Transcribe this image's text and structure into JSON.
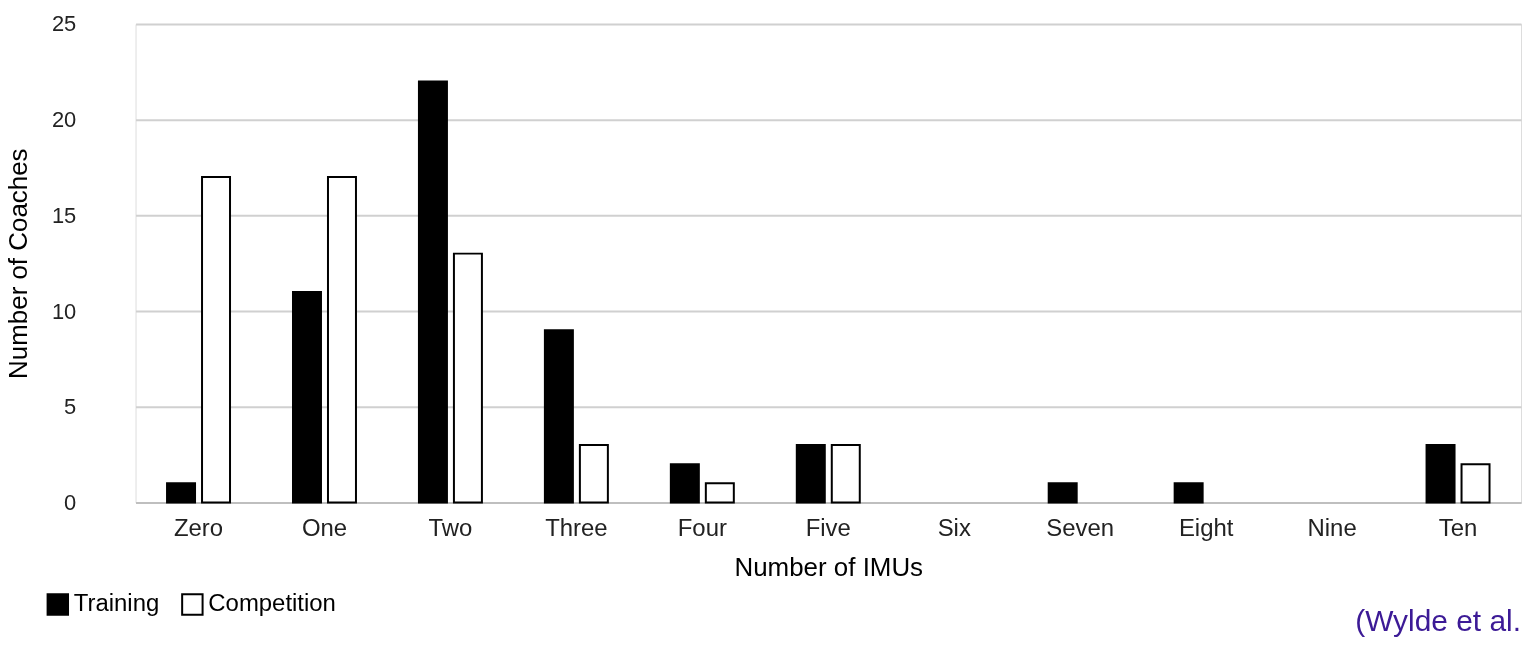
{
  "chart_data": {
    "type": "bar",
    "xlabel": "Number of IMUs",
    "ylabel": "Number of Coaches",
    "categories": [
      "Zero",
      "One",
      "Two",
      "Three",
      "Four",
      "Five",
      "Six",
      "Seven",
      "Eight",
      "Nine",
      "Ten"
    ],
    "series": [
      {
        "name": "Training",
        "color": "#000000",
        "values": [
          1,
          11,
          22,
          9,
          2,
          3,
          0,
          1,
          1,
          0,
          3
        ]
      },
      {
        "name": "Competition",
        "color": "#ffffff",
        "values": [
          17,
          17,
          13,
          3,
          1,
          3,
          0,
          0,
          0,
          0,
          2
        ]
      }
    ],
    "ylim": [
      0,
      25
    ],
    "yticks": [
      0,
      5,
      10,
      15,
      20,
      25
    ],
    "grid": "y",
    "legend": "bottom left",
    "annotations": [
      "(Wylde et al."
    ]
  }
}
